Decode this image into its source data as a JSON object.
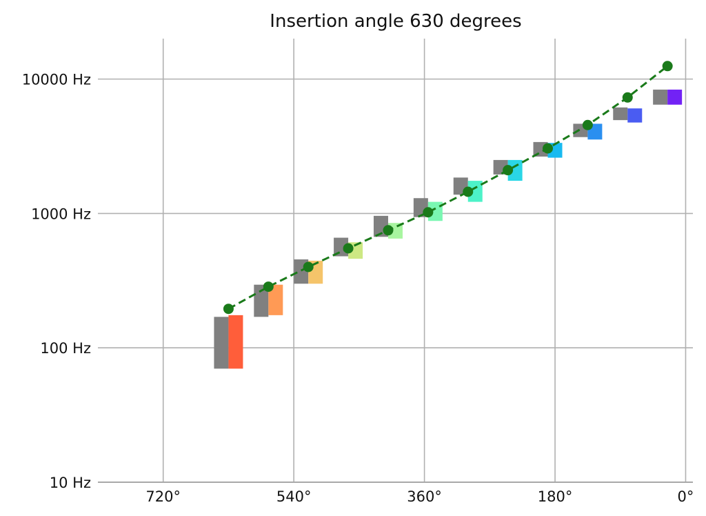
{
  "chart_data": {
    "type": "bar",
    "title": "Insertion angle 630 degrees",
    "xlabel": "",
    "ylabel": "",
    "x_axis": {
      "unit": "degrees",
      "reversed": true,
      "xlim": [
        810,
        -10
      ],
      "ticks": [
        720,
        540,
        360,
        180,
        0
      ],
      "tick_labels": [
        "720°",
        "540°",
        "360°",
        "180°",
        "0°"
      ]
    },
    "y_axis": {
      "scale": "log",
      "ylim": [
        10,
        20000
      ],
      "ticks": [
        10,
        100,
        1000,
        10000
      ],
      "tick_labels": [
        "10 Hz",
        "100 Hz",
        "1000 Hz",
        "10000 Hz"
      ]
    },
    "grid": true,
    "series": [
      {
        "type": "line",
        "style": "dashed",
        "color": "#1a7a1a",
        "x": [
          630,
          575,
          520,
          465,
          410,
          355,
          300,
          245,
          190,
          135,
          80,
          25
        ],
        "y": [
          195,
          285,
          400,
          550,
          750,
          1020,
          1450,
          2100,
          3050,
          4550,
          7300,
          12500
        ]
      }
    ],
    "bands": [
      {
        "x": 630,
        "gray": [
          70,
          170
        ],
        "colored": [
          70,
          175
        ],
        "color": "#ff5e3a"
      },
      {
        "x": 575,
        "gray": [
          170,
          295
        ],
        "colored": [
          175,
          295
        ],
        "color": "#ff9a55"
      },
      {
        "x": 520,
        "gray": [
          300,
          455
        ],
        "colored": [
          300,
          445
        ],
        "color": "#f5c46a"
      },
      {
        "x": 465,
        "gray": [
          480,
          660
        ],
        "colored": [
          460,
          610
        ],
        "color": "#cde883"
      },
      {
        "x": 410,
        "gray": [
          670,
          960
        ],
        "colored": [
          650,
          850
        ],
        "color": "#a8f5a0"
      },
      {
        "x": 355,
        "gray": [
          940,
          1300
        ],
        "colored": [
          880,
          1220
        ],
        "color": "#7af7b2"
      },
      {
        "x": 300,
        "gray": [
          1380,
          1850
        ],
        "colored": [
          1220,
          1750
        ],
        "color": "#4df2c8"
      },
      {
        "x": 245,
        "gray": [
          1950,
          2500
        ],
        "colored": [
          1750,
          2500
        ],
        "color": "#2ad6e6"
      },
      {
        "x": 190,
        "gray": [
          2650,
          3400
        ],
        "colored": [
          2600,
          3350
        ],
        "color": "#18baf0"
      },
      {
        "x": 135,
        "gray": [
          3700,
          4650
        ],
        "colored": [
          3550,
          4650
        ],
        "color": "#2a8ff0"
      },
      {
        "x": 80,
        "gray": [
          4950,
          6150
        ],
        "colored": [
          4750,
          6050
        ],
        "color": "#4a5cf2"
      },
      {
        "x": 25,
        "gray": [
          6450,
          8350
        ],
        "colored": [
          6450,
          8350
        ],
        "color": "#7222f5"
      }
    ],
    "band_gray_color": "#808080"
  }
}
